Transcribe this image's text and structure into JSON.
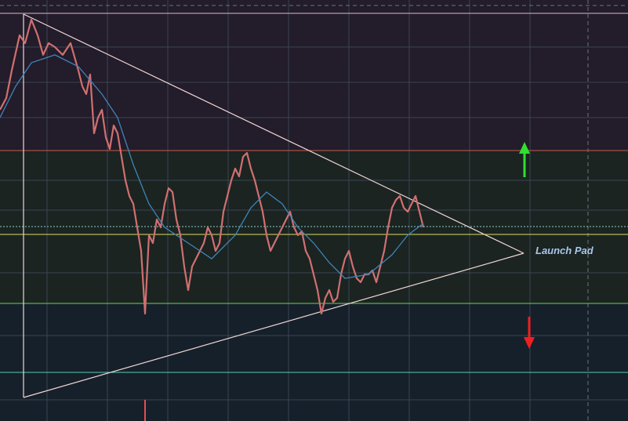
{
  "annotation": {
    "label": "Launch Pad"
  }
}
